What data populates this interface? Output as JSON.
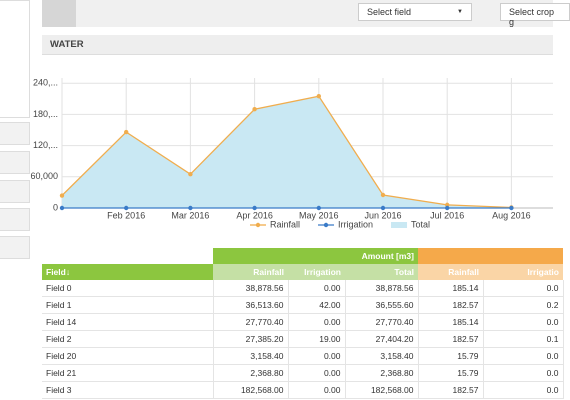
{
  "top_bar": {
    "field_select": "Select field",
    "crop_select": "Select crop g"
  },
  "section_title": "WATER",
  "chart_data": {
    "type": "line",
    "categories": [
      null,
      "Feb 2016",
      "Mar 2016",
      "Apr 2016",
      "May 2016",
      "Jun 2016",
      "Jul 2016",
      "Aug 2016"
    ],
    "series": [
      {
        "name": "Rainfall",
        "color": "#f0ad4e",
        "values": [
          24000,
          146000,
          65000,
          190000,
          215000,
          25000,
          6000,
          1000
        ]
      },
      {
        "name": "Irrigation",
        "color": "#3a7bc8",
        "values": [
          0,
          0,
          0,
          0,
          0,
          0,
          0,
          0
        ]
      },
      {
        "name": "Total",
        "color": "#c9e8f3",
        "values": [
          24000,
          146000,
          65000,
          190000,
          215000,
          25000,
          6000,
          1000
        ]
      }
    ],
    "ylim": [
      0,
      250000
    ],
    "yticks": [
      0,
      {
        "value": 60000,
        "label": "60,000"
      },
      {
        "value": 120000,
        "label": "120,..."
      },
      {
        "value": 180000,
        "label": "180,..."
      },
      {
        "value": 240000,
        "label": "240,..."
      }
    ],
    "grid": true
  },
  "table": {
    "group_header": "Amount [m3]",
    "columns": [
      "Field↓",
      "Rainfall",
      "Irrigation",
      "Total",
      "Rainfall",
      "Irrigatio"
    ],
    "rows": [
      [
        "Field 0",
        "38,878.56",
        "0.00",
        "38,878.56",
        "185.14",
        "0.0"
      ],
      [
        "Field 1",
        "36,513.60",
        "42.00",
        "36,555.60",
        "182.57",
        "0.2"
      ],
      [
        "Field 14",
        "27,770.40",
        "0.00",
        "27,770.40",
        "185.14",
        "0.0"
      ],
      [
        "Field 2",
        "27,385.20",
        "19.00",
        "27,404.20",
        "182.57",
        "0.1"
      ],
      [
        "Field 20",
        "3,158.40",
        "0.00",
        "3,158.40",
        "15.79",
        "0.0"
      ],
      [
        "Field 21",
        "2,368.80",
        "0.00",
        "2,368.80",
        "15.79",
        "0.0"
      ],
      [
        "Field 3",
        "182,568.00",
        "0.00",
        "182,568.00",
        "182.57",
        "0.0"
      ]
    ]
  }
}
